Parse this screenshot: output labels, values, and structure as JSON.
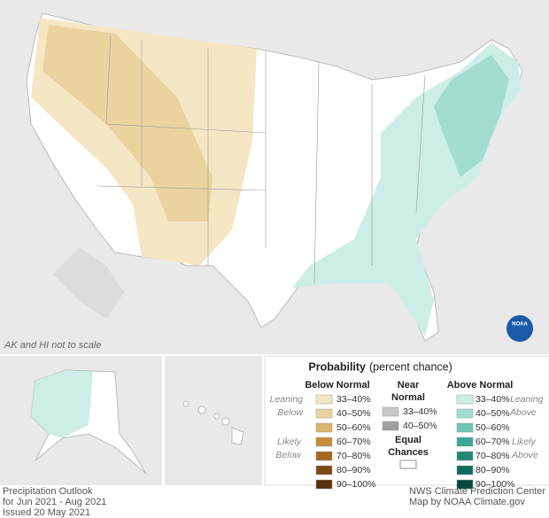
{
  "map": {
    "note": "AK and HI not to scale",
    "logo": "NOAA"
  },
  "legend": {
    "title": "Probability",
    "subtitle": "(percent chance)",
    "groups": [
      {
        "name": [
          "Below Normal"
        ],
        "levels": [
          {
            "label": "33–40%",
            "color": "#f5e6c4"
          },
          {
            "label": "40–50%",
            "color": "#ebd3a0"
          },
          {
            "label": "50–60%",
            "color": "#d8b46c"
          },
          {
            "label": "60–70%",
            "color": "#c68c3a"
          },
          {
            "label": "70–80%",
            "color": "#a6681f"
          },
          {
            "label": "80–90%",
            "color": "#7c4912"
          },
          {
            "label": "90–100%",
            "color": "#58300a"
          }
        ]
      },
      {
        "name": [
          "Near",
          "Normal"
        ],
        "levels": [
          {
            "label": "33–40%",
            "color": "#c8c8c8"
          },
          {
            "label": "40–50%",
            "color": "#a0a0a0"
          }
        ]
      },
      {
        "name": [
          "Above Normal"
        ],
        "levels": [
          {
            "label": "33–40%",
            "color": "#cdeee6"
          },
          {
            "label": "40–50%",
            "color": "#a2ddd0"
          },
          {
            "label": "50–60%",
            "color": "#6cc6b4"
          },
          {
            "label": "60–70%",
            "color": "#3aa896"
          },
          {
            "label": "70–80%",
            "color": "#1d8a78"
          },
          {
            "label": "80–90%",
            "color": "#0e6b5a"
          },
          {
            "label": "90–100%",
            "color": "#05493c"
          }
        ]
      }
    ],
    "leaning_below": [
      "Leaning",
      "Below"
    ],
    "likely_below": [
      "Likely",
      "Below"
    ],
    "leaning_above": [
      "Leaning",
      "Above"
    ],
    "likely_above": [
      "Likely",
      "Above"
    ],
    "equal_chances": [
      "Equal",
      "Chances"
    ]
  },
  "footer": {
    "left": [
      "Precipitation Outlook",
      "for Jun 2021 - Aug 2021",
      "Issued 20 May 2021"
    ],
    "right": [
      "NWS Climate Prediction Center",
      "Map by NOAA Climate.gov"
    ]
  }
}
